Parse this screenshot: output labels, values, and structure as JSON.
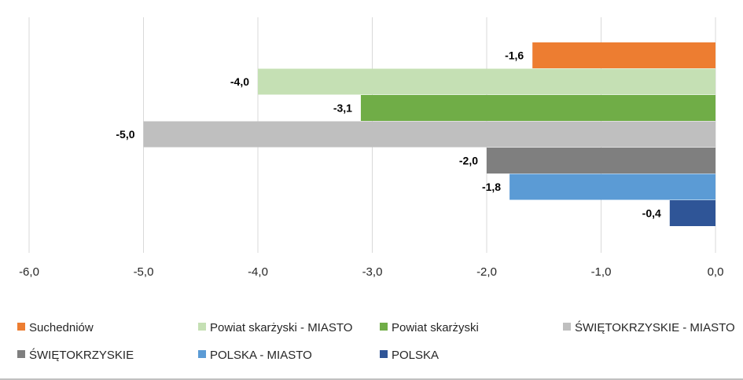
{
  "chart_data": {
    "type": "bar",
    "orientation": "horizontal",
    "title": "",
    "xlabel": "",
    "ylabel": "",
    "xlim": [
      -6.0,
      0.0
    ],
    "x_ticks": [
      {
        "value": -6.0,
        "label": "-6,0"
      },
      {
        "value": -5.0,
        "label": "-5,0"
      },
      {
        "value": -4.0,
        "label": "-4,0"
      },
      {
        "value": -3.0,
        "label": "-3,0"
      },
      {
        "value": -2.0,
        "label": "-2,0"
      },
      {
        "value": -1.0,
        "label": "-1,0"
      },
      {
        "value": 0.0,
        "label": "0,0"
      }
    ],
    "grid": "vertical",
    "legend_position": "bottom",
    "series": [
      {
        "name": "Suchedniów",
        "value": -1.6,
        "label": "-1,6",
        "color": "#ED7D31"
      },
      {
        "name": "Powiat skarżyski - MIASTO",
        "value": -4.0,
        "label": "-4,0",
        "color": "#C5E0B4"
      },
      {
        "name": "Powiat skarżyski",
        "value": -3.1,
        "label": "-3,1",
        "color": "#70AD47"
      },
      {
        "name": "ŚWIĘTOKRZYSKIE - MIASTO",
        "value": -5.0,
        "label": "-5,0",
        "color": "#BFBFBF"
      },
      {
        "name": "ŚWIĘTOKRZYSKIE",
        "value": -2.0,
        "label": "-2,0",
        "color": "#7F7F7F"
      },
      {
        "name": "POLSKA - MIASTO",
        "value": -1.8,
        "label": "-1,8",
        "color": "#5B9BD5"
      },
      {
        "name": "POLSKA",
        "value": -0.4,
        "label": "-0,4",
        "color": "#2F5597"
      }
    ]
  }
}
